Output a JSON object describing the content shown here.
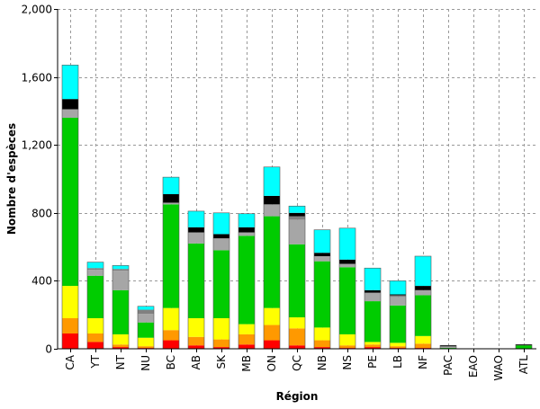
{
  "chart_data": {
    "type": "bar",
    "stacked": true,
    "title": "",
    "xlabel": "Région",
    "ylabel": "Nombre d'espèces",
    "ylim": [
      0,
      2000
    ],
    "yticks": [
      "0",
      "400",
      "800",
      "1,200",
      "1,600",
      "2,000"
    ],
    "grid": true,
    "legend": "none",
    "categories": [
      "CA",
      "YT",
      "NT",
      "NU",
      "BC",
      "AB",
      "SK",
      "MB",
      "ON",
      "QC",
      "NB",
      "NS",
      "PE",
      "LB",
      "NF",
      "PAC",
      "EAO",
      "WAO",
      "ATL"
    ],
    "series": [
      {
        "color": "#ff0000",
        "values": [
          90,
          40,
          10,
          5,
          50,
          20,
          10,
          25,
          50,
          20,
          10,
          5,
          10,
          5,
          5,
          0,
          0,
          0,
          0
        ]
      },
      {
        "color": "#ff9900",
        "values": [
          90,
          50,
          15,
          10,
          60,
          50,
          45,
          60,
          90,
          100,
          40,
          15,
          15,
          10,
          25,
          0,
          0,
          0,
          0
        ]
      },
      {
        "color": "#ffff00",
        "values": [
          190,
          90,
          60,
          50,
          130,
          110,
          125,
          60,
          100,
          65,
          75,
          65,
          15,
          20,
          45,
          0,
          0,
          0,
          0
        ]
      },
      {
        "color": "#00cc00",
        "values": [
          990,
          250,
          260,
          90,
          610,
          440,
          400,
          520,
          540,
          430,
          390,
          395,
          240,
          220,
          240,
          5,
          0,
          0,
          20
        ]
      },
      {
        "color": "#a6a6a6",
        "values": [
          50,
          35,
          115,
          50,
          10,
          65,
          70,
          20,
          70,
          145,
          30,
          20,
          50,
          50,
          30,
          5,
          0,
          0,
          0
        ]
      },
      {
        "color": "#808080",
        "values": [
          0,
          10,
          10,
          25,
          0,
          0,
          0,
          0,
          0,
          20,
          0,
          0,
          0,
          10,
          0,
          5,
          0,
          0,
          0
        ]
      },
      {
        "color": "#000000",
        "values": [
          60,
          0,
          0,
          0,
          50,
          30,
          25,
          30,
          50,
          20,
          20,
          25,
          15,
          5,
          25,
          5,
          0,
          0,
          5
        ]
      },
      {
        "color": "#00ffff",
        "values": [
          200,
          35,
          20,
          20,
          100,
          95,
          125,
          80,
          170,
          40,
          135,
          185,
          130,
          80,
          175,
          0,
          0,
          0,
          0
        ]
      }
    ]
  }
}
